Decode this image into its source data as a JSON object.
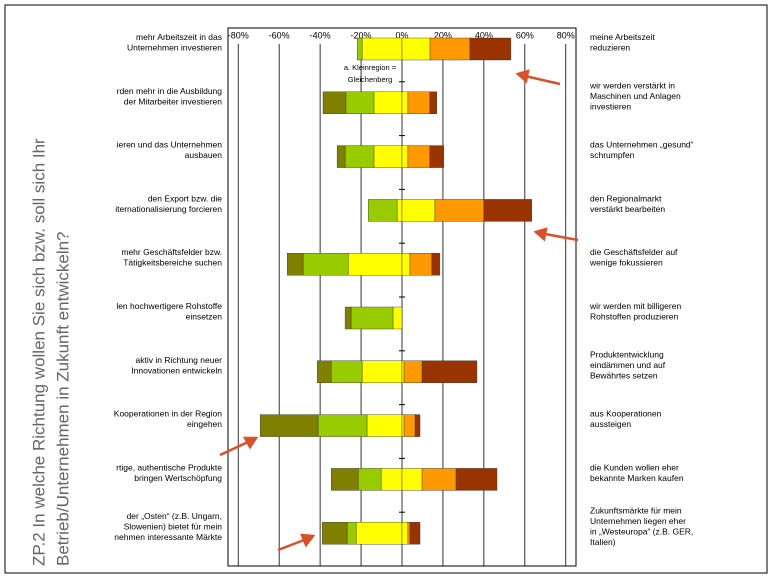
{
  "chart_data": {
    "type": "bar",
    "orientation": "horizontal",
    "title": [
      "ZP.2 In welche Richtung wollen Sie sich bzw. soll sich Ihr",
      "Betrieb/Unternehmen in Zukunft entwickeln?"
    ],
    "annotation": [
      "a. Kleinregion =",
      "Gleichenberg"
    ],
    "left_labels": [
      [
        "mehr Arbeitszeit in das",
        "Unternehmen investieren"
      ],
      [
        "rden mehr in die Ausbildung",
        "der Mitarbeiter investieren"
      ],
      [
        "ieren und das Unternehmen",
        "ausbauen"
      ],
      [
        "den Export bzw. die",
        "iternationalisierung forcieren"
      ],
      [
        "mehr Geschäftsfelder bzw.",
        "Tätigkeitsbereiche suchen"
      ],
      [
        "len hochwertigere Rohstoffe",
        "einsetzen"
      ],
      [
        "aktiv in Richtung neuer",
        "Innovationen entwickeln"
      ],
      [
        "Kooperationen in der Region",
        "eingehen"
      ],
      [
        "rtige, authentische Produkte",
        "bringen Wertschöpfung"
      ],
      [
        "der „Osten“ (z.B. Ungarn,",
        "Slowenien) bietet für mein",
        "nehmen interessante Märkte"
      ]
    ],
    "right_labels": [
      [
        "meine Arbeitszeit",
        "reduzieren"
      ],
      [
        "wir werden verstärkt in",
        "Maschinen und Anlagen",
        "investieren"
      ],
      [
        "das Unternehmen „gesund“",
        "schrumpfen"
      ],
      [
        "den Regionalmarkt",
        "verstärkt bearbeiten"
      ],
      [
        "die Geschäftsfelder auf",
        "wenige fokussieren"
      ],
      [
        "wir werden mit billigeren",
        "Rohstoffen produzieren"
      ],
      [
        "Produktentwicklung",
        "eindämmen und auf",
        "Bewährtes setzen"
      ],
      [
        "aus Kooperationen",
        "aussteigen"
      ],
      [
        "die Kunden wollen eher",
        "bekannte Marken kaufen"
      ],
      [
        "Zukunftsmärkte für mein",
        "Unternehmen liegen eher",
        "in „Westeuropa“ (z.B. GER,",
        "Italien)"
      ]
    ],
    "xlim": [
      -85,
      85
    ],
    "xticks": [
      {
        "value": -80,
        "label": "-80%"
      },
      {
        "value": -60,
        "label": "-60%"
      },
      {
        "value": -40,
        "label": "-40%"
      },
      {
        "value": -20,
        "label": "-20%"
      },
      {
        "value": 0,
        "label": "0%"
      },
      {
        "value": 20,
        "label": "20%"
      },
      {
        "value": 40,
        "label": "40%"
      },
      {
        "value": 60,
        "label": "60%"
      },
      {
        "value": 80,
        "label": "80%"
      }
    ],
    "grid": true,
    "series": [
      {
        "color": "#ffff00",
        "values": [
          -19.5,
          -13.7,
          -13.7,
          -2.4,
          -26.3,
          -4.4,
          -19.5,
          -17.1,
          -10.2,
          -22.4
        ]
      },
      {
        "color": "#99cc00",
        "values": [
          -2.4,
          -13.7,
          -14.1,
          -14.1,
          -22,
          -20.5,
          -15.1,
          -23.9,
          -11.2,
          -4.4
        ]
      },
      {
        "color": "#808000",
        "values": [
          0,
          -11.2,
          -3.9,
          0,
          -7.8,
          -2.9,
          -6.8,
          -28.3,
          -13.2,
          -12.2
        ]
      },
      {
        "color": "#ffff00",
        "values": [
          13.7,
          2.9,
          2.9,
          16.1,
          3.9,
          0,
          1,
          1,
          9.8,
          2.9
        ]
      },
      {
        "color": "#ff9900",
        "values": [
          19.5,
          10.7,
          10.7,
          23.9,
          10.7,
          0,
          8.8,
          5.4,
          16.6,
          1
        ]
      },
      {
        "color": "#993300",
        "values": [
          20,
          3.4,
          6.8,
          23.4,
          3.9,
          0,
          26.8,
          2.4,
          20,
          4.9
        ]
      }
    ]
  }
}
